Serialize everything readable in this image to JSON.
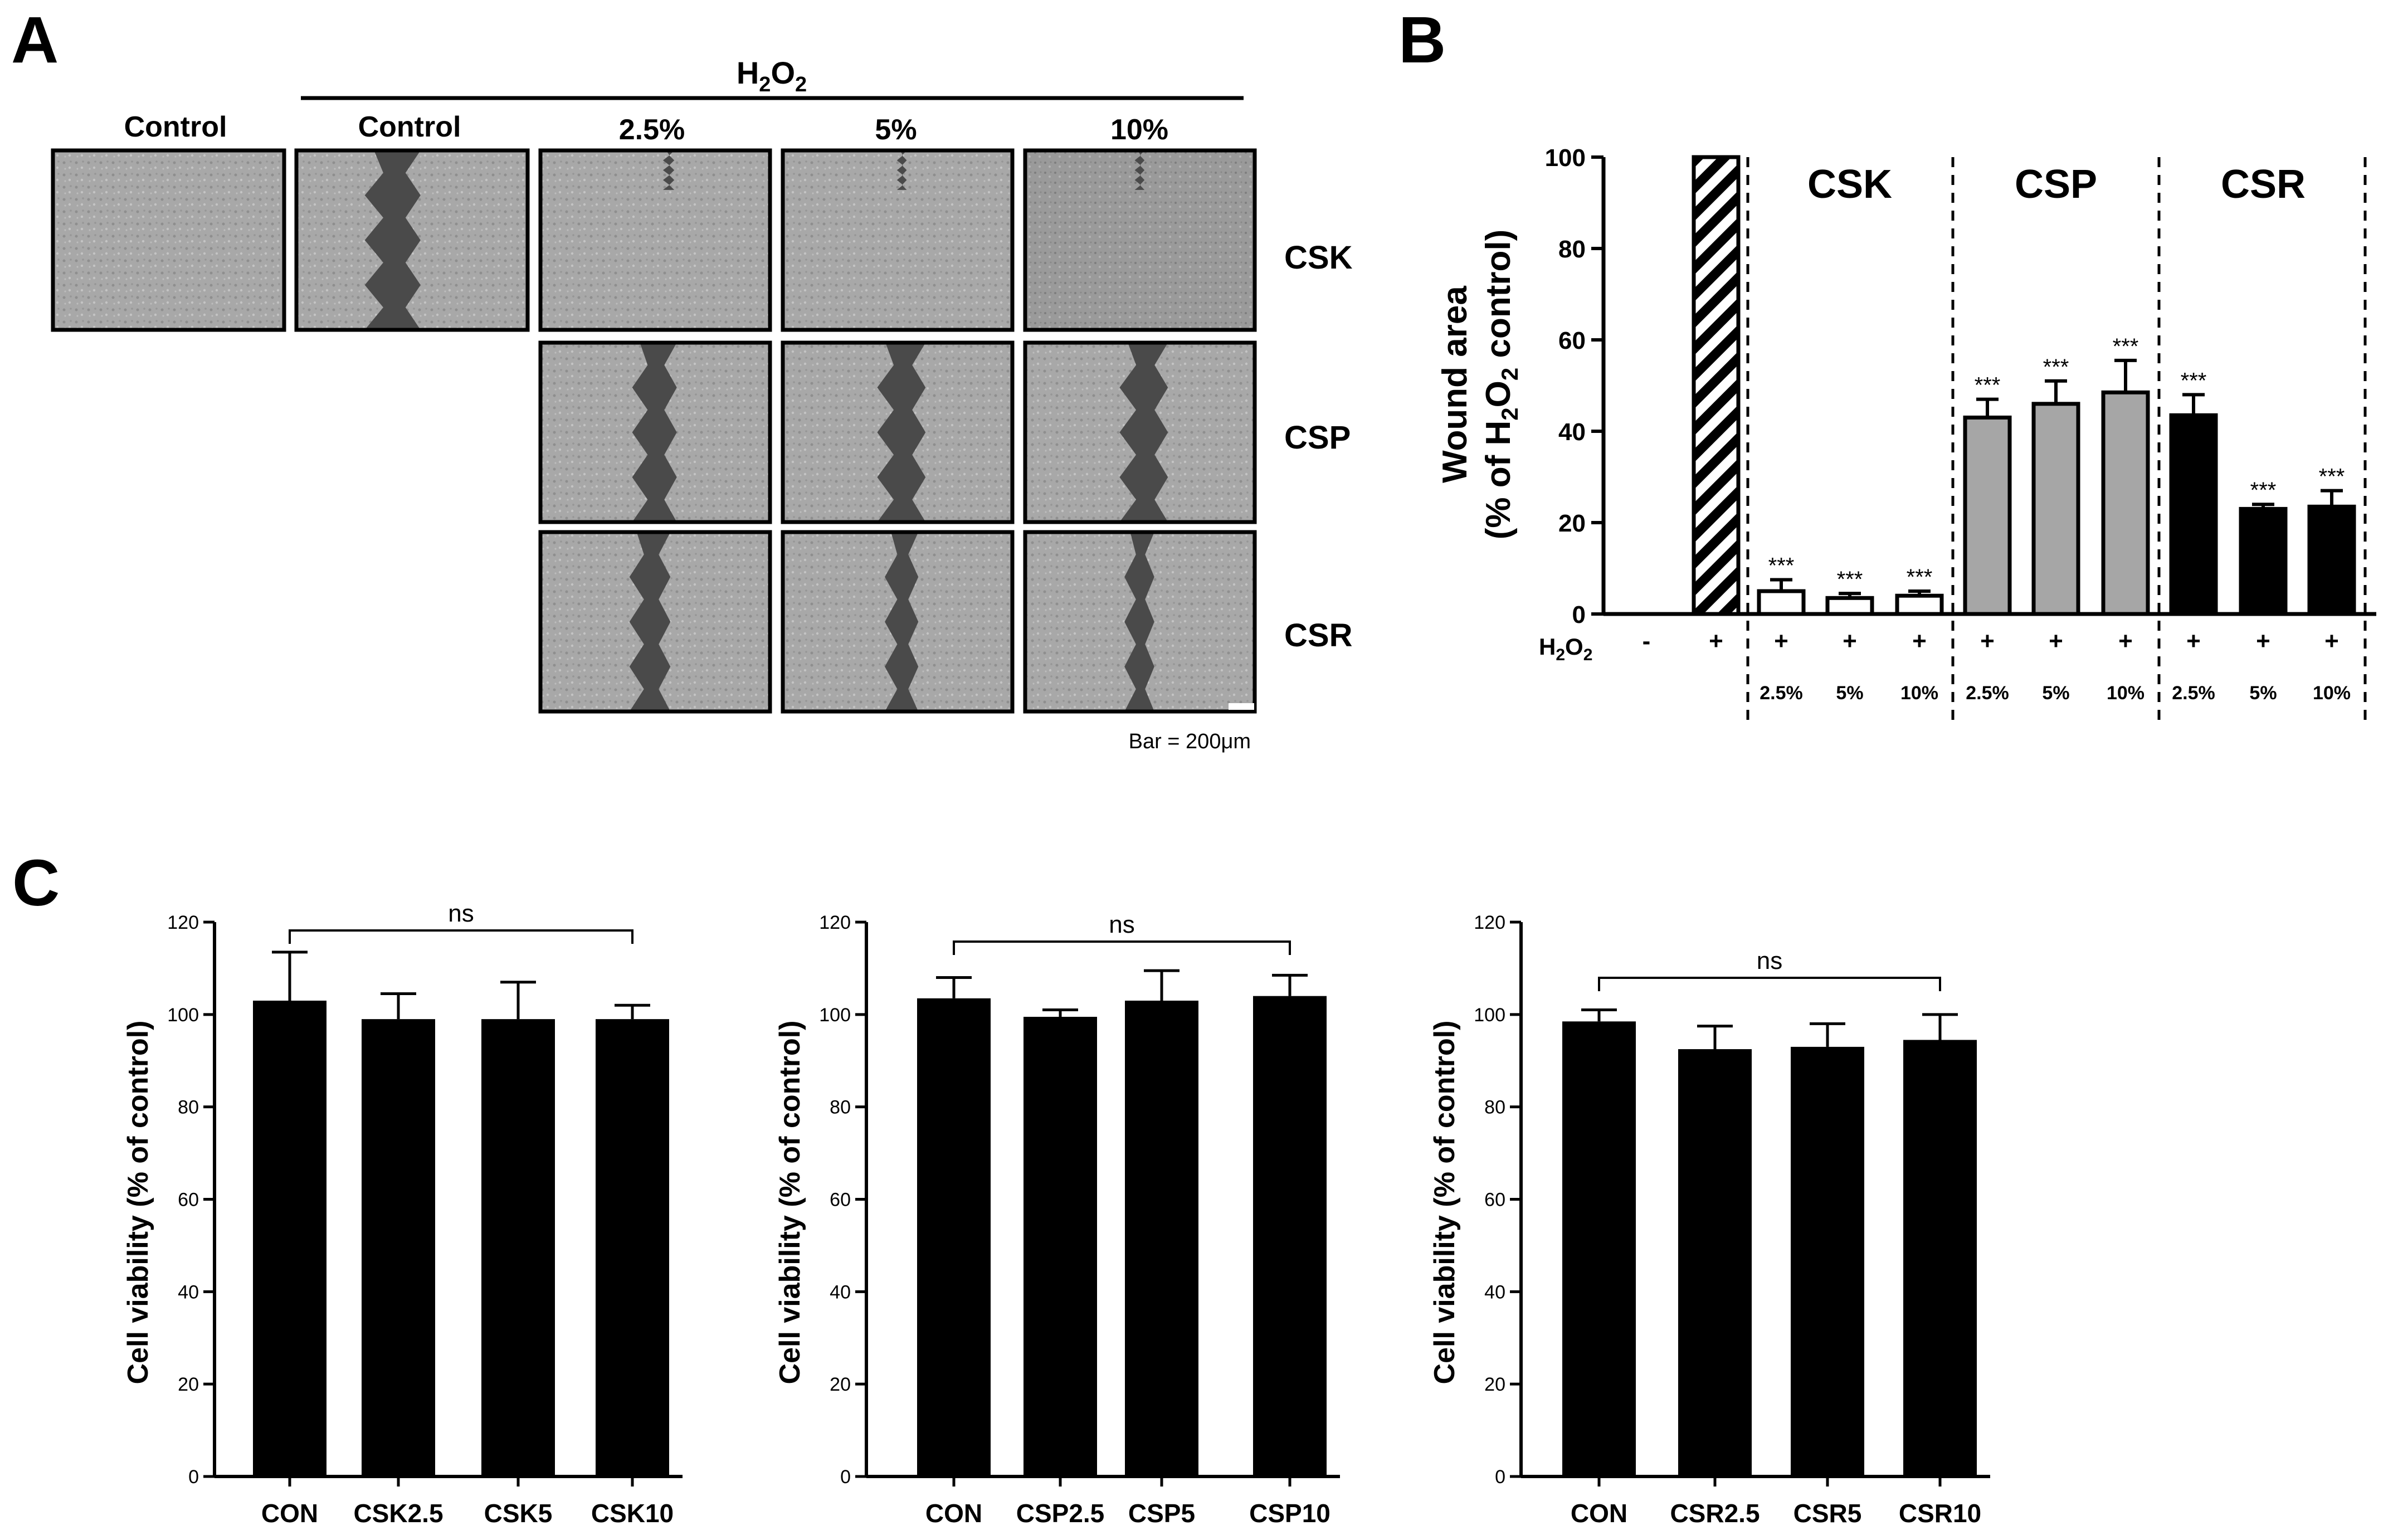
{
  "panels": {
    "A": {
      "letter": "A",
      "h2o2_prefix": "H",
      "h2o2_sub1": "2",
      "h2o2_mid": "O",
      "h2o2_sub2": "2",
      "col_labels": [
        "Control",
        "Control",
        "2.5%",
        "5%",
        "10%"
      ],
      "row_labels": [
        "CSK",
        "CSP",
        "CSR"
      ],
      "scale_text": "Bar = 200μm"
    },
    "B": {
      "letter": "B"
    },
    "C": {
      "letter": "C"
    }
  },
  "chart_data": [
    {
      "id": "B",
      "type": "bar",
      "ylabel_line1": "Wound area",
      "ylabel_line2_pre": "(% of H",
      "ylabel_line2_sub1": "2",
      "ylabel_line2_mid": "O",
      "ylabel_line2_sub2": "2",
      "ylabel_line2_post": " control)",
      "ylim": [
        0,
        100
      ],
      "yticks": [
        0,
        20,
        40,
        60,
        80,
        100
      ],
      "groups": [
        "CSK",
        "CSP",
        "CSR"
      ],
      "h2o2_row_label_pre": "H",
      "h2o2_row_sub1": "2",
      "h2o2_row_mid": "O",
      "h2o2_row_sub2": "2",
      "h2o2_signs": [
        "-",
        "+",
        "+",
        "+",
        "+",
        "+",
        "+",
        "+",
        "+",
        "+",
        "+"
      ],
      "concentrations": [
        "2.5%",
        "5%",
        "10%",
        "2.5%",
        "5%",
        "10%",
        "2.5%",
        "5%",
        "10%"
      ],
      "bars": [
        {
          "value": 0,
          "error": 0,
          "fill": "none",
          "sig": ""
        },
        {
          "value": 100,
          "error": 0,
          "fill": "hatch",
          "sig": ""
        },
        {
          "value": 5,
          "error": 2.5,
          "fill": "#ffffff",
          "sig": "***"
        },
        {
          "value": 3.5,
          "error": 1,
          "fill": "#ffffff",
          "sig": "***"
        },
        {
          "value": 4,
          "error": 1,
          "fill": "#ffffff",
          "sig": "***"
        },
        {
          "value": 43,
          "error": 4,
          "fill": "#a6a6a6",
          "sig": "***"
        },
        {
          "value": 46,
          "error": 5,
          "fill": "#a6a6a6",
          "sig": "***"
        },
        {
          "value": 48.5,
          "error": 7,
          "fill": "#a6a6a6",
          "sig": "***"
        },
        {
          "value": 43.5,
          "error": 4.5,
          "fill": "#000000",
          "sig": "***"
        },
        {
          "value": 23,
          "error": 1,
          "fill": "#000000",
          "sig": "***"
        },
        {
          "value": 23.5,
          "error": 3.5,
          "fill": "#000000",
          "sig": "***"
        }
      ]
    },
    {
      "id": "C1",
      "type": "bar",
      "ylabel": "Cell viability (% of control)",
      "ylim": [
        0,
        120
      ],
      "yticks": [
        0,
        20,
        40,
        60,
        80,
        100,
        120
      ],
      "categories": [
        "CON",
        "CSK2.5",
        "CSK5",
        "CSK10"
      ],
      "values": [
        103,
        99,
        99,
        99
      ],
      "errors": [
        10.5,
        5.5,
        8,
        3
      ],
      "annotation": "ns"
    },
    {
      "id": "C2",
      "type": "bar",
      "ylabel": "Cell viability (% of control)",
      "ylim": [
        0,
        120
      ],
      "yticks": [
        0,
        20,
        40,
        60,
        80,
        100,
        120
      ],
      "categories": [
        "CON",
        "CSP2.5",
        "CSP5",
        "CSP10"
      ],
      "values": [
        103.5,
        99.5,
        103,
        104
      ],
      "errors": [
        4.5,
        1.5,
        6.5,
        4.5
      ],
      "annotation": "ns"
    },
    {
      "id": "C3",
      "type": "bar",
      "ylabel": "Cell viability (% of control)",
      "ylim": [
        0,
        120
      ],
      "yticks": [
        0,
        20,
        40,
        60,
        80,
        100,
        120
      ],
      "categories": [
        "CON",
        "CSR2.5",
        "CSR5",
        "CSR10"
      ],
      "values": [
        98.5,
        92.5,
        93,
        94.5
      ],
      "errors": [
        2.5,
        5,
        5,
        5.5
      ],
      "annotation": "ns"
    }
  ]
}
